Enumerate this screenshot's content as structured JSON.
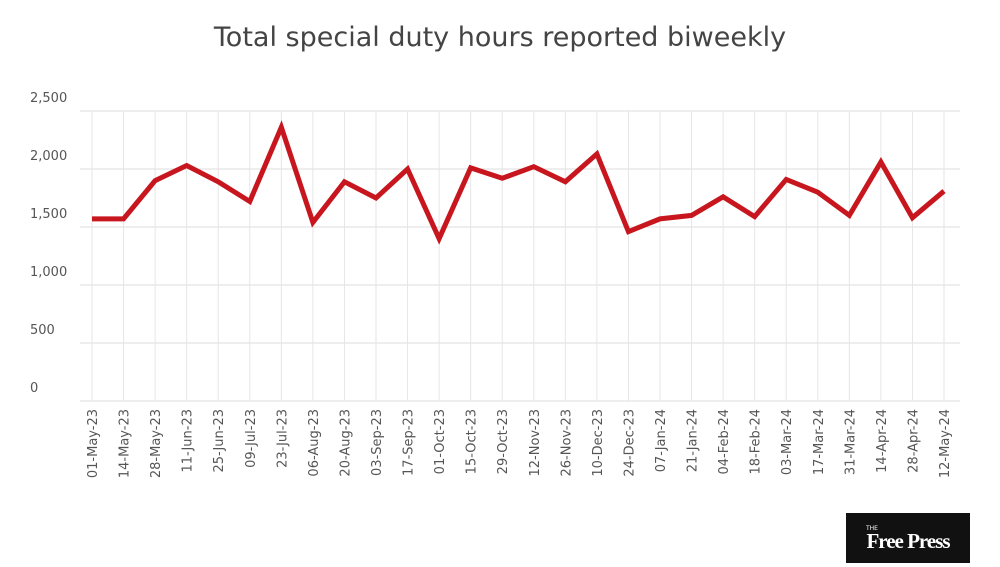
{
  "chart_data": {
    "type": "line",
    "title": "Total special duty hours reported biweekly",
    "categories": [
      "01-May-23",
      "14-May-23",
      "28-May-23",
      "11-Jun-23",
      "25-Jun-23",
      "09-Jul-23",
      "23-Jul-23",
      "06-Aug-23",
      "20-Aug-23",
      "03-Sep-23",
      "17-Sep-23",
      "01-Oct-23",
      "15-Oct-23",
      "29-Oct-23",
      "12-Nov-23",
      "26-Nov-23",
      "10-Dec-23",
      "24-Dec-23",
      "07-Jan-24",
      "21-Jan-24",
      "04-Feb-24",
      "18-Feb-24",
      "03-Mar-24",
      "17-Mar-24",
      "31-Mar-24",
      "14-Apr-24",
      "28-Apr-24",
      "12-May-24"
    ],
    "series": [
      {
        "color": "#c8161e",
        "values": [
          1570,
          1570,
          1900,
          2030,
          1890,
          1720,
          2360,
          1540,
          1890,
          1750,
          2000,
          1400,
          2010,
          1920,
          2020,
          1890,
          2130,
          1460,
          1570,
          1600,
          1760,
          1590,
          1910,
          1800,
          1600,
          2060,
          1580,
          1810
        ]
      }
    ],
    "ylim": [
      0,
      2500
    ],
    "yticks": [
      0,
      500,
      {
        "value": 1000,
        "label": "1,000"
      },
      {
        "value": 1500,
        "label": "1,500"
      },
      {
        "value": 2000,
        "label": "2,000"
      },
      {
        "value": 2500,
        "label": "2,500"
      }
    ],
    "grid": true
  },
  "logo": {
    "small": "THE",
    "name": "Free Press"
  }
}
